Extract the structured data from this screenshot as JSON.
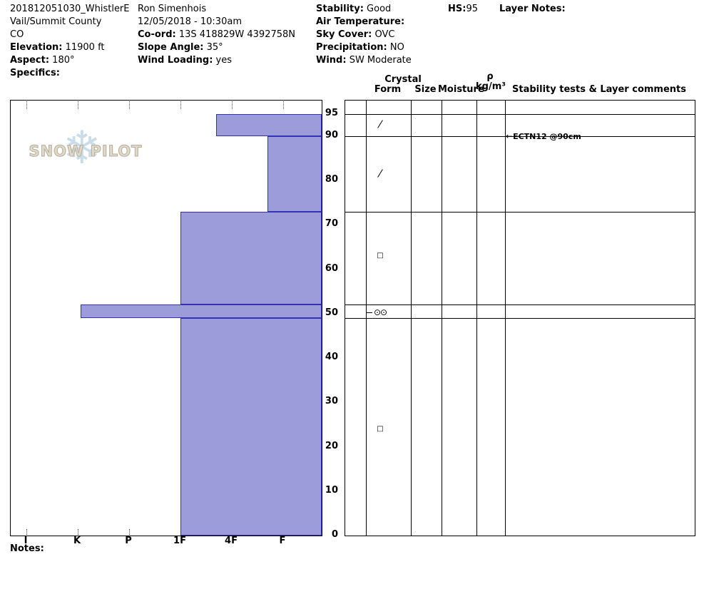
{
  "page": {
    "notes_label": "Notes:"
  },
  "logo": {
    "text": "SNOW PILOT",
    "flake_icon": "❄"
  },
  "header": {
    "columns": [
      {
        "lines": [
          {
            "label": "",
            "value": "201812051030_WhistlerE"
          },
          {
            "label": "",
            "value": "Vail/Summit County"
          },
          {
            "label": "",
            "value": "CO"
          },
          {
            "label": "Elevation:",
            "value": "11900 ft"
          },
          {
            "label": "Aspect:",
            "value": "180°"
          },
          {
            "label": "Specifics:",
            "value": ""
          }
        ]
      },
      {
        "lines": [
          {
            "label": "",
            "value": "Ron Simenhois"
          },
          {
            "label": "",
            "value": "12/05/2018 - 10:30am"
          },
          {
            "label": "Co-ord:",
            "value": "13S 418829W 4392758N"
          },
          {
            "label": "Slope Angle:",
            "value": "35°"
          },
          {
            "label": "Wind Loading:",
            "value": "yes"
          }
        ]
      },
      {
        "lines": [
          {
            "label": "Stability:",
            "value": "Good"
          },
          {
            "label": "Air Temperature:",
            "value": ""
          },
          {
            "label": "Sky Cover:",
            "value": "OVC"
          },
          {
            "label": "Precipitation:",
            "value": "NO"
          },
          {
            "label": "Wind:",
            "value": "SW Moderate"
          }
        ]
      },
      {
        "lines": [
          {
            "label": "HS:",
            "value": "95",
            "gap": false
          }
        ]
      },
      {
        "lines": [
          {
            "label": "Layer Notes:",
            "value": ""
          }
        ]
      }
    ]
  },
  "table_headers": {
    "crystal": "Crystal",
    "form": "Form",
    "size": "Size",
    "moisture": "Moisture",
    "rho": "ρ",
    "rho_units": "kg/m³",
    "comments": "Stability tests & Layer comments"
  },
  "chart_data": {
    "type": "bar",
    "orientation": "horizontal",
    "x_axis": {
      "categories": [
        "I",
        "K",
        "P",
        "1F",
        "4F",
        "F"
      ]
    },
    "y_axis": {
      "ticks": [
        95,
        90,
        80,
        70,
        60,
        50,
        40,
        30,
        20,
        10,
        0
      ],
      "min": 0,
      "max": 98
    },
    "hs_cm": 95,
    "layers": [
      {
        "top_cm": 95,
        "bottom_cm": 90,
        "hardness": "4F+",
        "hardness_pos": 3.7
      },
      {
        "top_cm": 90,
        "bottom_cm": 73,
        "hardness": "F+",
        "hardness_pos": 4.7
      },
      {
        "top_cm": 73,
        "bottom_cm": 52,
        "hardness": "1F",
        "hardness_pos": 3.0
      },
      {
        "top_cm": 52,
        "bottom_cm": 49,
        "hardness": "K",
        "hardness_pos": 1.05
      },
      {
        "top_cm": 49,
        "bottom_cm": 0,
        "hardness": "1F",
        "hardness_pos": 3.0
      }
    ],
    "layer_lines_cm": [
      95,
      90,
      73,
      52,
      49
    ],
    "grain_forms": [
      {
        "depth_cm": 92.5,
        "symbol": "⁄",
        "name": "decomposing-fragments"
      },
      {
        "depth_cm": 81.5,
        "symbol": "⁄",
        "name": "decomposing-fragments"
      },
      {
        "depth_cm": 63,
        "symbol": "□",
        "name": "faceted-crystals"
      },
      {
        "depth_cm": 50.3,
        "symbol": "⊙⊙",
        "name": "melt-forms"
      },
      {
        "depth_cm": 24,
        "symbol": "□",
        "name": "faceted-crystals"
      }
    ],
    "form_column_ticks": [
      {
        "depth_cm": 50.3
      }
    ],
    "stability_tests": [
      {
        "depth_cm": 90,
        "text": "ECTN12 @90cm"
      }
    ],
    "colors": {
      "bar_fill": "#9c9cdb",
      "bar_border": "#3232b4"
    }
  }
}
